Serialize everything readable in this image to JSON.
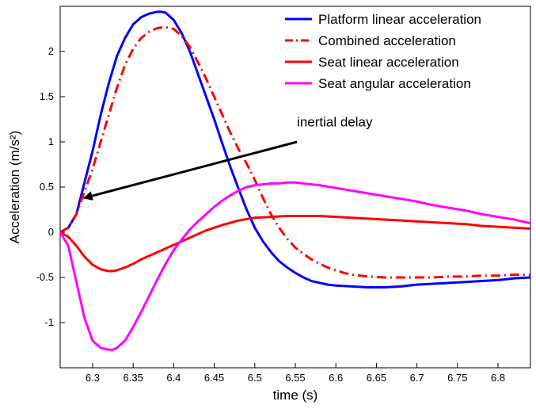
{
  "chart_data": {
    "type": "line",
    "title": "",
    "xlabel": "time (s)",
    "ylabel": "Acceleration (m/s²)",
    "xlim": [
      6.26,
      6.84
    ],
    "ylim": [
      -1.5,
      2.5
    ],
    "x_ticks": [
      6.3,
      6.35,
      6.4,
      6.45,
      6.5,
      6.55,
      6.6,
      6.65,
      6.7,
      6.75,
      6.8
    ],
    "x_tick_labels": [
      "6.3",
      "6.35",
      "6.4",
      "6.45",
      "6.5",
      "6.55",
      "6.6",
      "6.65",
      "6.7",
      "6.75",
      "6.8"
    ],
    "y_ticks": [
      -1,
      -0.5,
      0,
      0.5,
      1,
      1.5,
      2
    ],
    "y_tick_labels": [
      "-1",
      "-0.5",
      "0",
      "0.5",
      "1",
      "1.5",
      "2"
    ],
    "grid": false,
    "legend": {
      "position": "top-right",
      "box": false
    },
    "series": [
      {
        "name": "Platform linear acceleration",
        "color": "#0000ff",
        "style": "solid",
        "x": [
          6.26,
          6.27,
          6.28,
          6.29,
          6.3,
          6.31,
          6.32,
          6.33,
          6.34,
          6.35,
          6.36,
          6.37,
          6.38,
          6.385,
          6.39,
          6.4,
          6.41,
          6.42,
          6.43,
          6.44,
          6.45,
          6.46,
          6.47,
          6.48,
          6.49,
          6.5,
          6.51,
          6.52,
          6.53,
          6.54,
          6.55,
          6.56,
          6.57,
          6.58,
          6.59,
          6.6,
          6.62,
          6.64,
          6.65,
          6.66,
          6.68,
          6.7,
          6.72,
          6.74,
          6.76,
          6.78,
          6.8,
          6.82,
          6.84
        ],
        "y": [
          0.0,
          0.05,
          0.2,
          0.55,
          0.9,
          1.3,
          1.65,
          1.95,
          2.15,
          2.3,
          2.38,
          2.42,
          2.44,
          2.44,
          2.43,
          2.35,
          2.2,
          2.0,
          1.75,
          1.5,
          1.25,
          0.98,
          0.72,
          0.48,
          0.25,
          0.05,
          -0.1,
          -0.22,
          -0.32,
          -0.39,
          -0.45,
          -0.5,
          -0.54,
          -0.56,
          -0.58,
          -0.59,
          -0.6,
          -0.61,
          -0.61,
          -0.61,
          -0.6,
          -0.58,
          -0.57,
          -0.56,
          -0.55,
          -0.54,
          -0.53,
          -0.51,
          -0.5
        ]
      },
      {
        "name": "Combined acceleration",
        "color": "#ff0000",
        "style": "dashdot",
        "x": [
          6.26,
          6.27,
          6.28,
          6.29,
          6.3,
          6.31,
          6.32,
          6.33,
          6.34,
          6.35,
          6.36,
          6.37,
          6.38,
          6.39,
          6.4,
          6.41,
          6.42,
          6.43,
          6.44,
          6.45,
          6.46,
          6.47,
          6.48,
          6.49,
          6.5,
          6.51,
          6.52,
          6.53,
          6.54,
          6.55,
          6.56,
          6.57,
          6.58,
          6.59,
          6.6,
          6.61,
          6.62,
          6.64,
          6.66,
          6.68,
          6.7,
          6.72,
          6.74,
          6.76,
          6.78,
          6.8,
          6.82,
          6.84
        ],
        "y": [
          0.0,
          0.05,
          0.2,
          0.45,
          0.7,
          1.0,
          1.3,
          1.6,
          1.85,
          2.03,
          2.15,
          2.22,
          2.26,
          2.27,
          2.25,
          2.17,
          2.05,
          1.88,
          1.7,
          1.5,
          1.3,
          1.1,
          0.92,
          0.76,
          0.58,
          0.38,
          0.2,
          0.05,
          -0.07,
          -0.17,
          -0.24,
          -0.3,
          -0.35,
          -0.39,
          -0.42,
          -0.45,
          -0.47,
          -0.49,
          -0.5,
          -0.5,
          -0.5,
          -0.5,
          -0.49,
          -0.49,
          -0.48,
          -0.48,
          -0.47,
          -0.47
        ]
      },
      {
        "name": "Seat linear acceleration",
        "color": "#ff0000",
        "style": "solid",
        "x": [
          6.26,
          6.27,
          6.28,
          6.29,
          6.3,
          6.31,
          6.32,
          6.325,
          6.33,
          6.34,
          6.35,
          6.36,
          6.38,
          6.4,
          6.42,
          6.44,
          6.46,
          6.48,
          6.5,
          6.52,
          6.54,
          6.56,
          6.58,
          6.6,
          6.62,
          6.64,
          6.66,
          6.68,
          6.7,
          6.72,
          6.74,
          6.76,
          6.78,
          6.8,
          6.82,
          6.84
        ],
        "y": [
          0.0,
          -0.05,
          -0.15,
          -0.27,
          -0.36,
          -0.41,
          -0.43,
          -0.43,
          -0.42,
          -0.39,
          -0.35,
          -0.3,
          -0.22,
          -0.14,
          -0.06,
          0.02,
          0.08,
          0.13,
          0.16,
          0.17,
          0.18,
          0.18,
          0.18,
          0.17,
          0.16,
          0.15,
          0.14,
          0.13,
          0.12,
          0.11,
          0.1,
          0.09,
          0.07,
          0.06,
          0.05,
          0.04
        ]
      },
      {
        "name": "Seat angular acceleration",
        "color": "#ff00ff",
        "style": "solid",
        "x": [
          6.26,
          6.27,
          6.28,
          6.29,
          6.3,
          6.31,
          6.32,
          6.325,
          6.33,
          6.34,
          6.35,
          6.36,
          6.37,
          6.38,
          6.39,
          6.4,
          6.41,
          6.42,
          6.43,
          6.44,
          6.45,
          6.46,
          6.47,
          6.48,
          6.49,
          6.5,
          6.51,
          6.52,
          6.53,
          6.54,
          6.55,
          6.56,
          6.58,
          6.6,
          6.62,
          6.64,
          6.66,
          6.68,
          6.7,
          6.72,
          6.74,
          6.76,
          6.78,
          6.8,
          6.82,
          6.84
        ],
        "y": [
          0.0,
          -0.15,
          -0.55,
          -0.95,
          -1.2,
          -1.28,
          -1.3,
          -1.3,
          -1.28,
          -1.2,
          -1.05,
          -0.88,
          -0.7,
          -0.52,
          -0.35,
          -0.2,
          -0.08,
          0.03,
          0.12,
          0.2,
          0.28,
          0.35,
          0.41,
          0.46,
          0.5,
          0.52,
          0.53,
          0.54,
          0.54,
          0.55,
          0.55,
          0.54,
          0.52,
          0.49,
          0.46,
          0.43,
          0.4,
          0.37,
          0.34,
          0.3,
          0.27,
          0.24,
          0.2,
          0.17,
          0.14,
          0.1
        ]
      }
    ],
    "annotations": [
      {
        "text": "inertial delay",
        "text_x": 6.552,
        "text_y": 1.1,
        "arrow_from": [
          6.552,
          1.0
        ],
        "arrow_to": [
          6.29,
          0.38
        ]
      }
    ]
  }
}
